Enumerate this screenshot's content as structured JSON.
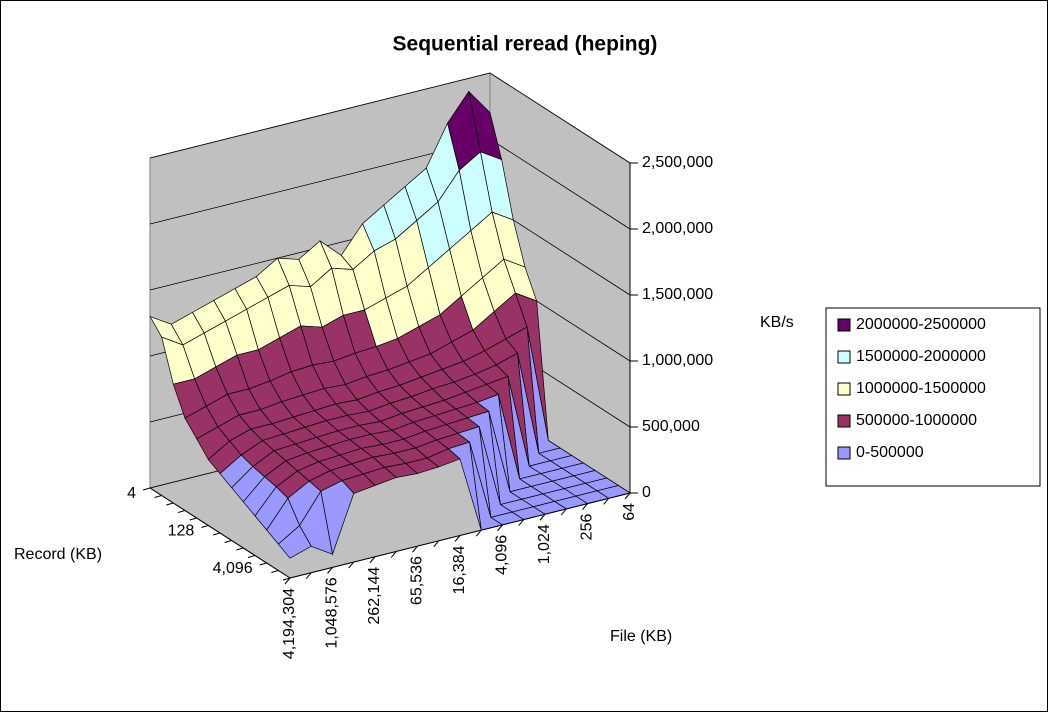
{
  "chart_data": {
    "type": "surface3d",
    "title": "Sequential reread (heping)",
    "x_label": "File (KB)",
    "y_label": "Record (KB)",
    "z_label": "KB/s",
    "categories": [
      "4,194,304",
      null,
      "1,048,576",
      null,
      "262,144",
      null,
      "65,536",
      null,
      "16,384",
      null,
      "4,096",
      null,
      "1,024",
      null,
      "256",
      null,
      "64"
    ],
    "records": [
      "4",
      null,
      null,
      null,
      null,
      "128",
      null,
      null,
      null,
      null,
      "4,096",
      null,
      null
    ],
    "zlim": [
      0,
      2500000
    ],
    "zticks": [
      0,
      {
        "value": 500000,
        "label": "500,000"
      },
      {
        "value": 1000000,
        "label": "1,000,000"
      },
      {
        "value": 1500000,
        "label": "1,500,000"
      },
      {
        "value": 2000000,
        "label": "2,000,000"
      },
      {
        "value": 2500000,
        "label": "2,500,000"
      }
    ],
    "grid": true,
    "legend_position": "right",
    "bands": [
      {
        "name": "0-500000",
        "color": "#9999ff"
      },
      {
        "name": "500000-1000000",
        "color": "#993366"
      },
      {
        "name": "1000000-1500000",
        "color": "#ffffcc"
      },
      {
        "name": "1500000-2000000",
        "color": "#ccffff"
      },
      {
        "name": "2000000-2500000",
        "color": "#660066"
      }
    ],
    "values": [
      [
        1300000,
        1200000,
        1250000,
        1300000,
        1350000,
        1400000,
        1500000,
        1450000,
        1550000,
        1400000,
        1600000,
        1700000,
        1800000,
        1900000,
        2200000,
        2400000,
        2200000
      ],
      [
        1200000,
        1100000,
        1150000,
        1200000,
        1250000,
        1300000,
        1350000,
        1300000,
        1400000,
        1350000,
        1450000,
        1500000,
        1600000,
        1700000,
        1900000,
        2000000,
        1900000
      ],
      [
        900000,
        900000,
        950000,
        1000000,
        1000000,
        1050000,
        1100000,
        1050000,
        1100000,
        1100000,
        1150000,
        1200000,
        1300000,
        1400000,
        1500000,
        1600000,
        1500000
      ],
      [
        700000,
        750000,
        800000,
        800000,
        820000,
        850000,
        860000,
        850000,
        870000,
        880000,
        900000,
        950000,
        1000000,
        1100000,
        1200000,
        1300000,
        1200000
      ],
      [
        600000,
        650000,
        700000,
        700000,
        720000,
        730000,
        740000,
        730000,
        750000,
        760000,
        780000,
        800000,
        850000,
        900000,
        1000000,
        1100000,
        1000000
      ],
      [
        500000,
        600000,
        650000,
        650000,
        660000,
        670000,
        680000,
        670000,
        690000,
        700000,
        720000,
        740000,
        760000,
        800000,
        850000,
        900000,
        0
      ],
      [
        450000,
        550000,
        620000,
        630000,
        640000,
        650000,
        650000,
        640000,
        660000,
        670000,
        690000,
        700000,
        720000,
        750000,
        800000,
        0,
        0
      ],
      [
        400000,
        520000,
        600000,
        610000,
        620000,
        630000,
        630000,
        620000,
        640000,
        650000,
        660000,
        680000,
        700000,
        720000,
        0,
        0,
        0
      ],
      [
        350000,
        500000,
        580000,
        600000,
        610000,
        620000,
        620000,
        610000,
        630000,
        640000,
        650000,
        660000,
        680000,
        0,
        0,
        0,
        0
      ],
      [
        300000,
        480000,
        560000,
        590000,
        600000,
        610000,
        600000,
        600000,
        620000,
        630000,
        640000,
        650000,
        0,
        0,
        0,
        0,
        0
      ],
      [
        250000,
        450000,
        540000,
        580000,
        590000,
        600000,
        590000,
        590000,
        610000,
        620000,
        630000,
        0,
        0,
        0,
        0,
        0,
        0
      ],
      [
        200000,
        300000,
        520000,
        560000,
        570000,
        580000,
        570000,
        570000,
        600000,
        610000,
        0,
        0,
        0,
        0,
        0,
        0,
        0
      ],
      [
        150000,
        200000,
        100000,
        520000,
        540000,
        560000,
        550000,
        560000,
        580000,
        0,
        0,
        0,
        0,
        0,
        0,
        0,
        0
      ]
    ]
  }
}
